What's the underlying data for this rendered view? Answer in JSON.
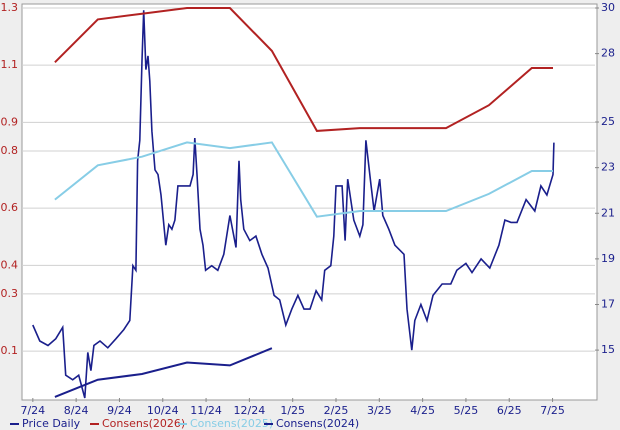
{
  "chart_data": {
    "type": "line",
    "xlim": [
      -0.25,
      12.98
    ],
    "xticks": [
      {
        "value": 0,
        "label": "7/24"
      },
      {
        "value": 1,
        "label": "8/24"
      },
      {
        "value": 2,
        "label": "9/24"
      },
      {
        "value": 3,
        "label": "10/24"
      },
      {
        "value": 4,
        "label": "11/24"
      },
      {
        "value": 5,
        "label": "12/24"
      },
      {
        "value": 6,
        "label": "1/25"
      },
      {
        "value": 7,
        "label": "2/25"
      },
      {
        "value": 8,
        "label": "3/25"
      },
      {
        "value": 9,
        "label": "4/25"
      },
      {
        "value": 10,
        "label": "5/25"
      },
      {
        "value": 11,
        "label": "6/25"
      },
      {
        "value": 12,
        "label": "7/25"
      }
    ],
    "ylim": [
      -0.064,
      1.3
    ],
    "yticks": [
      1.3,
      1.1,
      0.9,
      0.8,
      0.6,
      0.4,
      0.3,
      0.1
    ],
    "y_tick_color": "#b22222",
    "y2lim": [
      12.9,
      30
    ],
    "y2ticks": [
      30,
      28,
      25,
      23,
      21,
      19,
      17,
      15
    ],
    "y2_tick_color": "#1a1f8c",
    "grid": true,
    "legend": "bottom",
    "series": [
      {
        "name": "Price Daily",
        "color": "#1a1f8c",
        "axis": "y2",
        "x": [
          0,
          0.16,
          0.35,
          0.53,
          0.69,
          0.76,
          0.92,
          1.06,
          1.2,
          1.27,
          1.34,
          1.41,
          1.55,
          1.73,
          1.92,
          2.1,
          2.24,
          2.31,
          2.38,
          2.42,
          2.47,
          2.52,
          2.56,
          2.61,
          2.66,
          2.7,
          2.75,
          2.82,
          2.89,
          2.96,
          3.07,
          3.14,
          3.21,
          3.28,
          3.35,
          3.49,
          3.63,
          3.7,
          3.74,
          3.79,
          3.86,
          3.93,
          3.99,
          4.13,
          4.27,
          4.41,
          4.55,
          4.69,
          4.76,
          4.8,
          4.87,
          5.01,
          5.15,
          5.29,
          5.43,
          5.57,
          5.7,
          5.84,
          5.98,
          6.12,
          6.26,
          6.4,
          6.54,
          6.67,
          6.74,
          6.88,
          6.95,
          7.0,
          7.14,
          7.21,
          7.27,
          7.41,
          7.55,
          7.62,
          7.69,
          7.81,
          7.88,
          8.01,
          8.08,
          8.22,
          8.36,
          8.57,
          8.64,
          8.75,
          8.82,
          8.96,
          9.1,
          9.24,
          9.45,
          9.65,
          9.79,
          10.0,
          10.14,
          10.35,
          10.55,
          10.76,
          10.9,
          11.04,
          11.18,
          11.39,
          11.59,
          11.73,
          11.87,
          12.01,
          12.03
        ],
        "values": [
          16.1,
          15.4,
          15.2,
          15.5,
          16.0,
          13.9,
          13.7,
          13.9,
          12.9,
          14.9,
          14.1,
          15.2,
          15.4,
          15.1,
          15.5,
          15.9,
          16.3,
          18.7,
          18.5,
          23.3,
          24.2,
          27.7,
          29.9,
          27.3,
          27.9,
          26.8,
          24.6,
          22.9,
          22.7,
          21.8,
          19.6,
          20.5,
          20.3,
          20.7,
          22.2,
          22.2,
          22.2,
          22.7,
          24.3,
          22.7,
          20.3,
          19.6,
          18.5,
          18.7,
          18.5,
          19.2,
          20.9,
          19.5,
          23.3,
          21.6,
          20.3,
          19.8,
          20.0,
          19.2,
          18.6,
          17.4,
          17.2,
          16.1,
          16.8,
          17.4,
          16.8,
          16.8,
          17.6,
          17.2,
          18.5,
          18.7,
          20.0,
          22.2,
          22.2,
          19.8,
          22.5,
          20.7,
          20.0,
          20.5,
          24.2,
          22.2,
          21.1,
          22.5,
          20.9,
          20.3,
          19.6,
          19.2,
          16.8,
          15.0,
          16.3,
          17.0,
          16.3,
          17.4,
          17.9,
          17.9,
          18.5,
          18.8,
          18.4,
          19.0,
          18.6,
          19.6,
          20.7,
          20.6,
          20.6,
          21.6,
          21.1,
          22.2,
          21.8,
          22.7,
          24.1
        ]
      },
      {
        "name": "Consens(2026)",
        "color": "#b22222",
        "axis": "y",
        "x": [
          0.51,
          1.5,
          2.52,
          3.56,
          4.55,
          5.52,
          6.56,
          7.55,
          8.55,
          9.54,
          10.53,
          11.52,
          12.01
        ],
        "values": [
          1.11,
          1.26,
          1.28,
          1.3,
          1.3,
          1.15,
          0.87,
          0.88,
          0.88,
          0.88,
          0.96,
          1.09,
          1.09
        ]
      },
      {
        "name": "Consens(2025)",
        "color": "#87cde6",
        "axis": "y",
        "x": [
          0.51,
          1.5,
          2.52,
          3.56,
          4.55,
          5.52,
          6.56,
          7.55,
          8.55,
          9.54,
          10.53,
          11.52,
          12.01
        ],
        "values": [
          0.63,
          0.75,
          0.78,
          0.83,
          0.81,
          0.83,
          0.57,
          0.59,
          0.59,
          0.59,
          0.65,
          0.73,
          0.73
        ]
      },
      {
        "name": "Consens(2024)",
        "color": "#1a1f8c",
        "axis": "y",
        "x": [
          0.51,
          1.5,
          2.52,
          3.56,
          4.55,
          5.52
        ],
        "values": [
          -0.06,
          0.0,
          0.02,
          0.06,
          0.05,
          0.11
        ]
      }
    ]
  }
}
